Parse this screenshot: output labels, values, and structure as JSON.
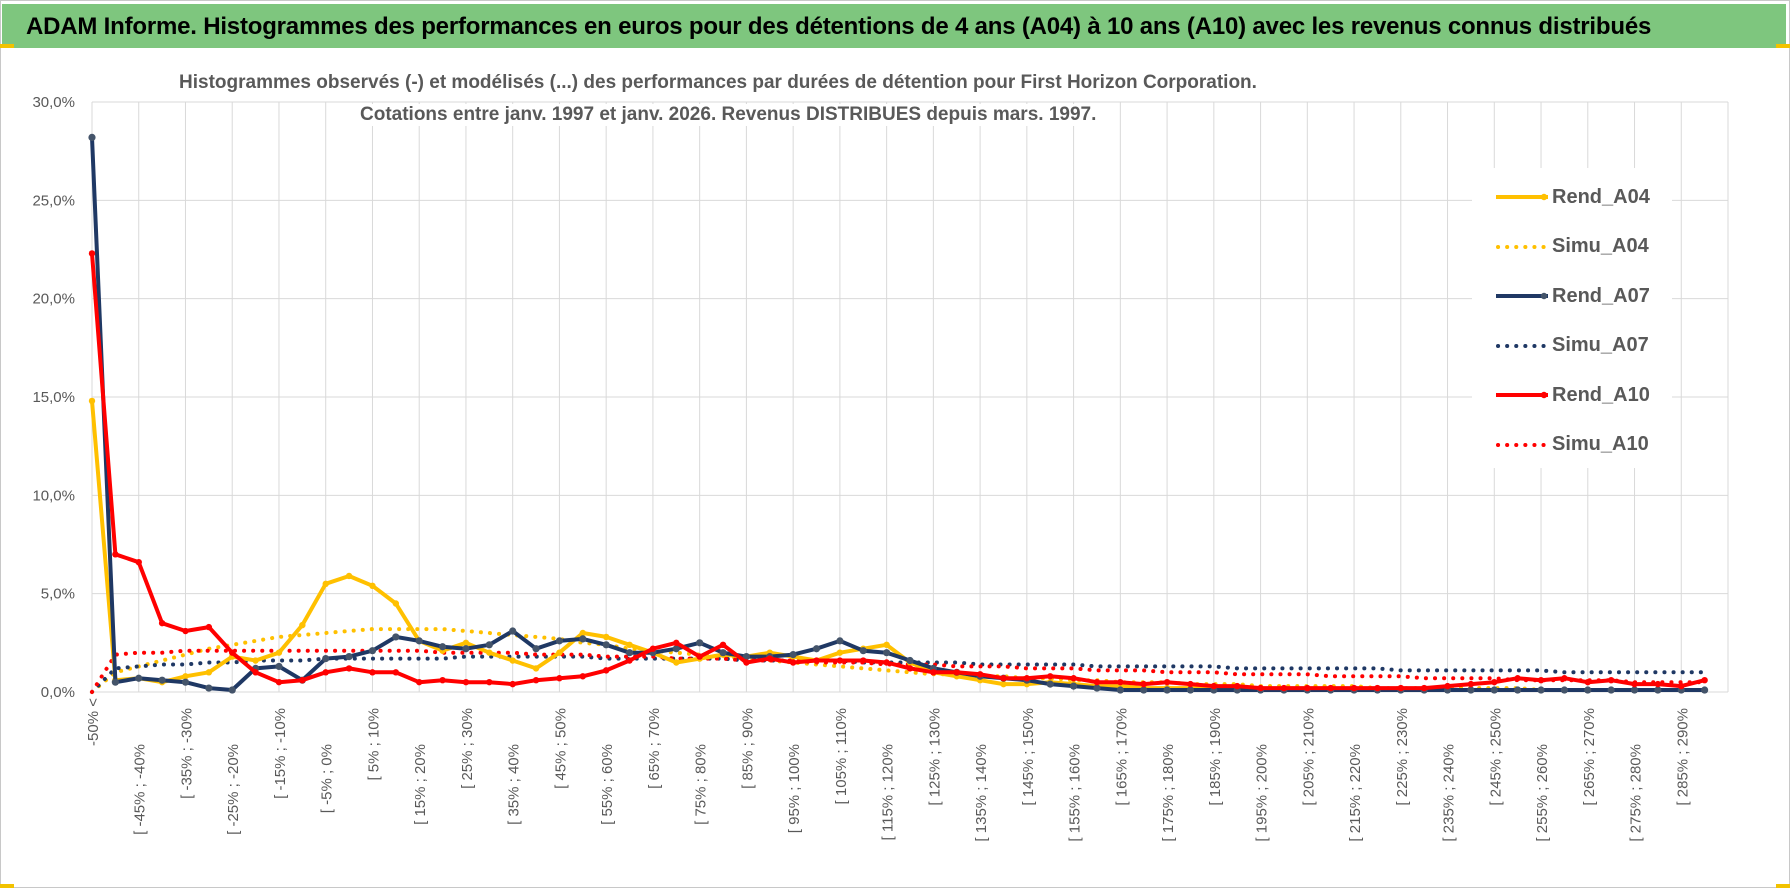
{
  "header": {
    "title": "ADAM Informe. Histogrammes des performances en euros pour des détentions de 4 ans (A04) à 10 ans (A10) avec les revenus connus distribués"
  },
  "colors": {
    "banner": "#7ec67e",
    "A04": "#ffc000",
    "A07": "#1f3864",
    "A10": "#ff0000",
    "grid": "#d9d9d9",
    "text": "#595959"
  },
  "chart_data": {
    "type": "line",
    "title": "Histogrammes observés (-) et modélisés (...) des performances par durées de détention pour First Horizon Corporation.",
    "subtitle": "Cotations entre janv. 1997 et janv. 2026. Revenus DISTRIBUES depuis mars. 1997.",
    "ylim": [
      0,
      30
    ],
    "yticks": [
      "0,0%",
      "5,0%",
      "10,0%",
      "15,0%",
      "20,0%",
      "25,0%",
      "30,0%"
    ],
    "xtick_labels": [
      "-50% <",
      "[ -45% ; -40%",
      "[ -35% ; -30%",
      "[ -25% ; -20%",
      "[ -15% ; -10%",
      "[ -5% ; 0%",
      "[ 5% ; 10%",
      "[ 15% ; 20%",
      "[ 25% ; 30%",
      "[ 35% ; 40%",
      "[ 45% ; 50%",
      "[ 55% ; 60%",
      "[ 65% ; 70%",
      "[ 75% ; 80%",
      "[ 85% ; 90%",
      "[ 95% ; 100%",
      "[ 105% ; 110%",
      "[ 115% ; 120%",
      "[ 125% ; 130%",
      "[ 135% ; 140%",
      "[ 145% ; 150%",
      "[ 155% ; 160%",
      "[ 165% ; 170%",
      "[ 175% ; 180%",
      "[ 185% ; 190%",
      "[ 195% ; 200%",
      "[ 205% ; 210%",
      "[ 215% ; 220%",
      "[ 225% ; 230%",
      "[ 235% ; 240%",
      "[ 245% ; 250%",
      "[ 255% ; 260%",
      "[ 265% ; 270%",
      "[ 275% ; 280%",
      "[ 285% ; 290%"
    ],
    "grid": true,
    "legend_position": "right",
    "series": [
      {
        "name": "Rend_A04",
        "style": "solid",
        "color": "#ffc000",
        "values": [
          14.8,
          0.6,
          0.7,
          0.5,
          0.8,
          1.0,
          1.8,
          1.6,
          2.0,
          3.4,
          5.5,
          5.9,
          5.4,
          4.5,
          2.6,
          2.1,
          2.5,
          2.0,
          1.6,
          1.2,
          2.0,
          3.0,
          2.8,
          2.4,
          2.0,
          1.5,
          1.7,
          1.9,
          1.8,
          2.0,
          1.8,
          1.6,
          2.0,
          2.2,
          2.4,
          1.5,
          1.0,
          0.8,
          0.6,
          0.4,
          0.4,
          0.5,
          0.4,
          0.3,
          0.3,
          0.2,
          0.2,
          0.2,
          0.2,
          0.1,
          0.1,
          0.1,
          0.1,
          0.1,
          0.1,
          0.1,
          0.1,
          0.1,
          0.1,
          0.1,
          0.1,
          0.1,
          0.1,
          0.1,
          0.1,
          0.1,
          0.1,
          0.1,
          0.1,
          0.1
        ]
      },
      {
        "name": "Simu_A04",
        "style": "dotted",
        "color": "#ffc000",
        "values": [
          0.0,
          1.0,
          1.3,
          1.6,
          1.9,
          2.2,
          2.4,
          2.6,
          2.8,
          2.9,
          3.0,
          3.1,
          3.2,
          3.2,
          3.2,
          3.2,
          3.1,
          3.0,
          2.9,
          2.8,
          2.7,
          2.5,
          2.4,
          2.2,
          2.1,
          2.0,
          1.9,
          1.8,
          1.7,
          1.6,
          1.5,
          1.4,
          1.3,
          1.2,
          1.1,
          1.0,
          0.9,
          0.9,
          0.8,
          0.8,
          0.7,
          0.7,
          0.6,
          0.6,
          0.5,
          0.5,
          0.5,
          0.4,
          0.4,
          0.4,
          0.3,
          0.3,
          0.3,
          0.3,
          0.3,
          0.2,
          0.2,
          0.2,
          0.2,
          0.2,
          0.2,
          0.2,
          0.1,
          0.1,
          0.1,
          0.1,
          0.1,
          0.1,
          0.1,
          0.1
        ]
      },
      {
        "name": "Rend_A07",
        "style": "solid",
        "color": "#1f3864",
        "values": [
          28.2,
          0.5,
          0.7,
          0.6,
          0.5,
          0.2,
          0.1,
          1.2,
          1.3,
          0.6,
          1.7,
          1.8,
          2.1,
          2.8,
          2.6,
          2.3,
          2.2,
          2.4,
          3.1,
          2.2,
          2.6,
          2.7,
          2.4,
          2.0,
          2.0,
          2.2,
          2.5,
          2.0,
          1.8,
          1.8,
          1.9,
          2.2,
          2.6,
          2.1,
          2.0,
          1.6,
          1.2,
          1.0,
          0.8,
          0.7,
          0.6,
          0.4,
          0.3,
          0.2,
          0.1,
          0.1,
          0.1,
          0.1,
          0.1,
          0.1,
          0.1,
          0.1,
          0.1,
          0.1,
          0.1,
          0.1,
          0.1,
          0.1,
          0.1,
          0.1,
          0.1,
          0.1,
          0.1,
          0.1,
          0.1,
          0.1,
          0.1,
          0.1,
          0.1,
          0.1
        ]
      },
      {
        "name": "Simu_A07",
        "style": "dotted",
        "color": "#1f3864",
        "values": [
          0.0,
          1.2,
          1.3,
          1.4,
          1.4,
          1.5,
          1.5,
          1.6,
          1.6,
          1.6,
          1.7,
          1.7,
          1.7,
          1.7,
          1.7,
          1.7,
          1.8,
          1.8,
          1.8,
          1.8,
          1.8,
          1.8,
          1.7,
          1.7,
          1.7,
          1.7,
          1.7,
          1.7,
          1.6,
          1.6,
          1.6,
          1.6,
          1.6,
          1.5,
          1.5,
          1.5,
          1.5,
          1.5,
          1.4,
          1.4,
          1.4,
          1.4,
          1.4,
          1.3,
          1.3,
          1.3,
          1.3,
          1.3,
          1.3,
          1.2,
          1.2,
          1.2,
          1.2,
          1.2,
          1.2,
          1.2,
          1.1,
          1.1,
          1.1,
          1.1,
          1.1,
          1.1,
          1.1,
          1.0,
          1.0,
          1.0,
          1.0,
          1.0,
          1.0,
          1.0
        ]
      },
      {
        "name": "Rend_A10",
        "style": "solid",
        "color": "#ff0000",
        "values": [
          22.3,
          7.0,
          6.6,
          3.5,
          3.1,
          3.3,
          2.0,
          1.0,
          0.5,
          0.6,
          1.0,
          1.2,
          1.0,
          1.0,
          0.5,
          0.6,
          0.5,
          0.5,
          0.4,
          0.6,
          0.7,
          0.8,
          1.1,
          1.6,
          2.2,
          2.5,
          1.8,
          2.4,
          1.5,
          1.7,
          1.5,
          1.6,
          1.6,
          1.6,
          1.5,
          1.2,
          1.0,
          1.0,
          0.9,
          0.7,
          0.7,
          0.8,
          0.7,
          0.5,
          0.5,
          0.4,
          0.5,
          0.4,
          0.3,
          0.3,
          0.2,
          0.2,
          0.2,
          0.2,
          0.2,
          0.2,
          0.2,
          0.2,
          0.3,
          0.4,
          0.5,
          0.7,
          0.6,
          0.7,
          0.5,
          0.6,
          0.4,
          0.4,
          0.3,
          0.6
        ]
      },
      {
        "name": "Simu_A10",
        "style": "dotted",
        "color": "#ff0000",
        "values": [
          0.0,
          1.9,
          2.0,
          2.0,
          2.1,
          2.1,
          2.1,
          2.1,
          2.1,
          2.1,
          2.1,
          2.1,
          2.1,
          2.1,
          2.1,
          2.0,
          2.0,
          2.0,
          2.0,
          1.9,
          1.9,
          1.9,
          1.8,
          1.8,
          1.8,
          1.7,
          1.7,
          1.7,
          1.6,
          1.6,
          1.6,
          1.5,
          1.5,
          1.5,
          1.4,
          1.4,
          1.4,
          1.3,
          1.3,
          1.3,
          1.2,
          1.2,
          1.2,
          1.1,
          1.1,
          1.1,
          1.0,
          1.0,
          1.0,
          0.9,
          0.9,
          0.9,
          0.9,
          0.8,
          0.8,
          0.8,
          0.8,
          0.7,
          0.7,
          0.7,
          0.7,
          0.6,
          0.6,
          0.6,
          0.6,
          0.6,
          0.5,
          0.5,
          0.5,
          0.5
        ]
      }
    ]
  }
}
